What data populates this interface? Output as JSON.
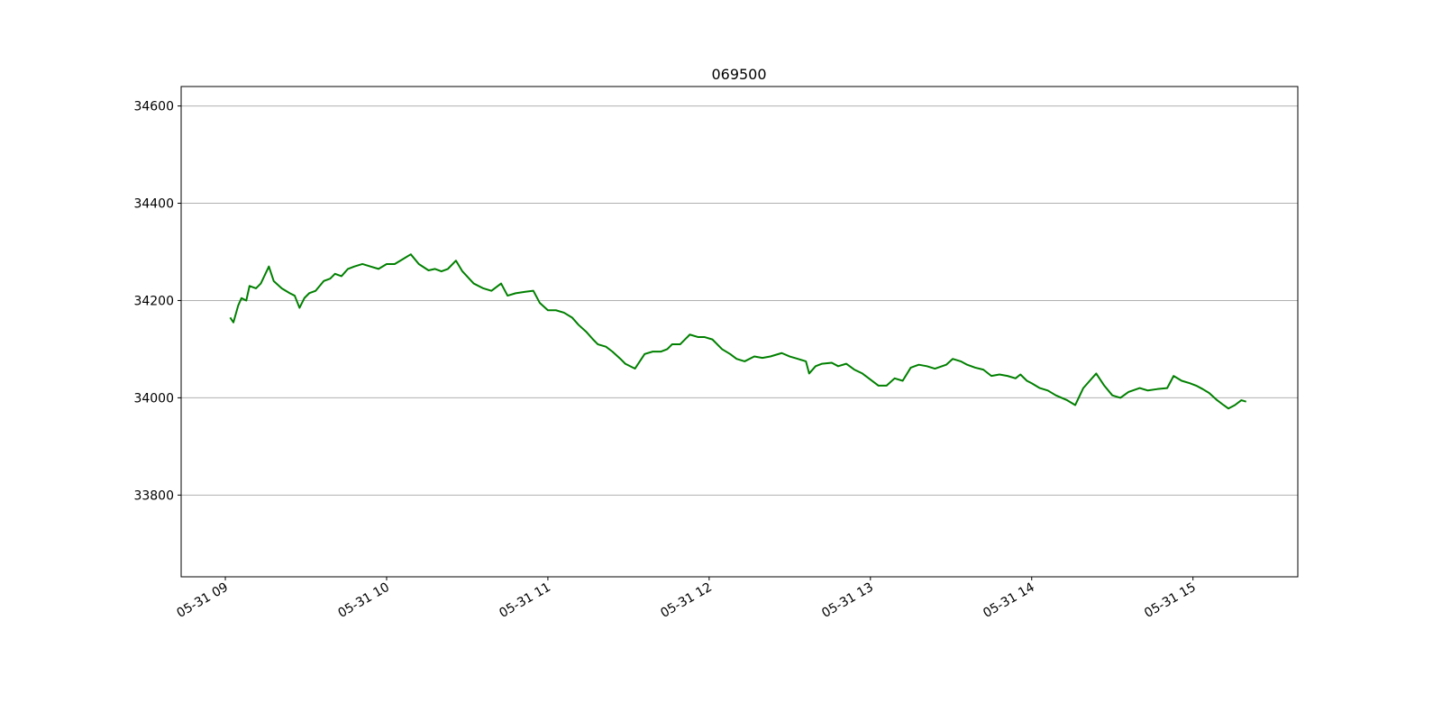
{
  "chart_data": {
    "type": "line",
    "title": "069500",
    "x": [
      9.03,
      9.05,
      9.08,
      9.1,
      9.13,
      9.15,
      9.19,
      9.22,
      9.27,
      9.3,
      9.35,
      9.4,
      9.43,
      9.46,
      9.49,
      9.52,
      9.56,
      9.61,
      9.65,
      9.68,
      9.72,
      9.76,
      9.8,
      9.85,
      9.9,
      9.95,
      10.0,
      10.05,
      10.1,
      10.15,
      10.2,
      10.26,
      10.3,
      10.34,
      10.38,
      10.43,
      10.47,
      10.54,
      10.6,
      10.65,
      10.71,
      10.75,
      10.8,
      10.86,
      10.91,
      10.95,
      11.0,
      11.05,
      11.1,
      11.15,
      11.19,
      11.24,
      11.28,
      11.31,
      11.36,
      11.4,
      11.45,
      11.48,
      11.54,
      11.6,
      11.65,
      11.7,
      11.74,
      11.77,
      11.82,
      11.88,
      11.93,
      11.97,
      12.02,
      12.08,
      12.13,
      12.17,
      12.22,
      12.28,
      12.33,
      12.38,
      12.45,
      12.5,
      12.55,
      12.6,
      12.62,
      12.66,
      12.7,
      12.76,
      12.8,
      12.85,
      12.9,
      12.95,
      12.99,
      13.05,
      13.1,
      13.15,
      13.2,
      13.25,
      13.3,
      13.35,
      13.4,
      13.47,
      13.51,
      13.56,
      13.6,
      13.65,
      13.7,
      13.75,
      13.8,
      13.85,
      13.9,
      13.93,
      13.97,
      14.0,
      14.05,
      14.1,
      14.15,
      14.22,
      14.27,
      14.32,
      14.36,
      14.4,
      14.45,
      14.5,
      14.55,
      14.6,
      14.67,
      14.72,
      14.78,
      14.84,
      14.88,
      14.93,
      14.98,
      15.02,
      15.06,
      15.1,
      15.15,
      15.19,
      15.22,
      15.26,
      15.3,
      15.33
    ],
    "series": [
      {
        "name": "069500",
        "color": "#008000",
        "values": [
          34165,
          34155,
          34190,
          34205,
          34200,
          34230,
          34225,
          34235,
          34270,
          34240,
          34225,
          34215,
          34210,
          34185,
          34205,
          34215,
          34220,
          34240,
          34245,
          34255,
          34250,
          34265,
          34270,
          34275,
          34270,
          34265,
          34275,
          34275,
          34285,
          34295,
          34275,
          34262,
          34265,
          34260,
          34265,
          34282,
          34260,
          34235,
          34225,
          34220,
          34235,
          34210,
          34215,
          34218,
          34220,
          34195,
          34180,
          34180,
          34175,
          34165,
          34150,
          34135,
          34120,
          34110,
          34105,
          34095,
          34080,
          34070,
          34060,
          34090,
          34095,
          34095,
          34100,
          34110,
          34110,
          34130,
          34125,
          34125,
          34120,
          34100,
          34090,
          34080,
          34075,
          34085,
          34082,
          34085,
          34092,
          34085,
          34080,
          34075,
          34050,
          34065,
          34070,
          34072,
          34065,
          34070,
          34058,
          34050,
          34040,
          34025,
          34025,
          34040,
          34035,
          34062,
          34068,
          34065,
          34060,
          34068,
          34080,
          34075,
          34068,
          34062,
          34058,
          34045,
          34048,
          34045,
          34040,
          34048,
          34035,
          34030,
          34020,
          34015,
          34005,
          33995,
          33985,
          34020,
          34035,
          34050,
          34025,
          34005,
          34000,
          34012,
          34020,
          34015,
          34018,
          34020,
          34045,
          34035,
          34030,
          34025,
          34018,
          34010,
          33995,
          33985,
          33978,
          33985,
          33995,
          33992
        ]
      }
    ],
    "xlim": [
      8.726,
      15.65
    ],
    "xticks": [
      {
        "value": 9,
        "label": "05-31 09"
      },
      {
        "value": 10,
        "label": "05-31 10"
      },
      {
        "value": 11,
        "label": "05-31 11"
      },
      {
        "value": 12,
        "label": "05-31 12"
      },
      {
        "value": 13,
        "label": "05-31 13"
      },
      {
        "value": 14,
        "label": "05-31 14"
      },
      {
        "value": 15,
        "label": "05-31 15"
      }
    ],
    "ylim": [
      33632,
      34640
    ],
    "yticks": [
      33800,
      34000,
      34200,
      34400,
      34600
    ],
    "grid": true
  }
}
